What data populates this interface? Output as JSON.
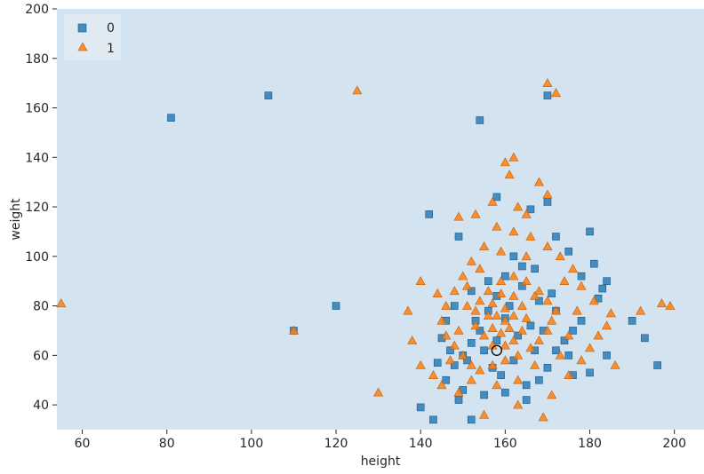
{
  "chart_data": {
    "type": "scatter",
    "xlabel": "height",
    "ylabel": "weight",
    "xlim": [
      54,
      207
    ],
    "ylim": [
      30,
      200
    ],
    "xticks": [
      60,
      80,
      100,
      120,
      140,
      160,
      180,
      200
    ],
    "yticks": [
      40,
      60,
      80,
      100,
      120,
      140,
      160,
      180,
      200
    ],
    "grid": false,
    "background": "#d3e3ef",
    "legend": {
      "placement": "top-left",
      "entries": [
        "0",
        "1"
      ]
    },
    "series": [
      {
        "name": "0",
        "marker": "square",
        "color": "#1f77b4",
        "points": [
          [
            81,
            156
          ],
          [
            104,
            165
          ],
          [
            110,
            70
          ],
          [
            120,
            80
          ],
          [
            154,
            155
          ],
          [
            170,
            165
          ],
          [
            142,
            117
          ],
          [
            140,
            39
          ],
          [
            143,
            34
          ],
          [
            152,
            34
          ],
          [
            158,
            124
          ],
          [
            170,
            122
          ],
          [
            180,
            110
          ],
          [
            172,
            108
          ],
          [
            149,
            108
          ],
          [
            166,
            119
          ],
          [
            162,
            100
          ],
          [
            164,
            96
          ],
          [
            184,
            90
          ],
          [
            183,
            87
          ],
          [
            182,
            83
          ],
          [
            190,
            74
          ],
          [
            193,
            67
          ],
          [
            196,
            56
          ],
          [
            184,
            60
          ],
          [
            180,
            53
          ],
          [
            176,
            52
          ],
          [
            175,
            60
          ],
          [
            172,
            78
          ],
          [
            168,
            82
          ],
          [
            166,
            72
          ],
          [
            163,
            68
          ],
          [
            160,
            75
          ],
          [
            158,
            84
          ],
          [
            156,
            78
          ],
          [
            154,
            70
          ],
          [
            152,
            65
          ],
          [
            150,
            60
          ],
          [
            148,
            56
          ],
          [
            146,
            50
          ],
          [
            150,
            46
          ],
          [
            155,
            44
          ],
          [
            160,
            45
          ],
          [
            165,
            48
          ],
          [
            168,
            50
          ],
          [
            170,
            55
          ],
          [
            172,
            62
          ],
          [
            174,
            66
          ],
          [
            176,
            70
          ],
          [
            178,
            74
          ],
          [
            164,
            88
          ],
          [
            160,
            92
          ],
          [
            156,
            90
          ],
          [
            152,
            86
          ],
          [
            148,
            80
          ],
          [
            146,
            74
          ],
          [
            145,
            67
          ],
          [
            147,
            62
          ],
          [
            151,
            58
          ],
          [
            157,
            55
          ],
          [
            162,
            58
          ],
          [
            167,
            62
          ],
          [
            169,
            70
          ],
          [
            171,
            85
          ],
          [
            167,
            95
          ],
          [
            161,
            80
          ],
          [
            158,
            66
          ],
          [
            155,
            62
          ],
          [
            153,
            74
          ],
          [
            159,
            52
          ],
          [
            165,
            42
          ],
          [
            149,
            42
          ],
          [
            144,
            57
          ],
          [
            178,
            92
          ],
          [
            181,
            97
          ],
          [
            175,
            102
          ]
        ]
      },
      {
        "name": "1",
        "marker": "triangle",
        "color": "#ff7f0e",
        "points": [
          [
            55,
            81
          ],
          [
            110,
            70
          ],
          [
            125,
            167
          ],
          [
            130,
            45
          ],
          [
            170,
            170
          ],
          [
            172,
            166
          ],
          [
            162,
            140
          ],
          [
            160,
            138
          ],
          [
            161,
            133
          ],
          [
            168,
            130
          ],
          [
            170,
            125
          ],
          [
            163,
            120
          ],
          [
            165,
            117
          ],
          [
            157,
            122
          ],
          [
            153,
            117
          ],
          [
            149,
            116
          ],
          [
            144,
            85
          ],
          [
            140,
            90
          ],
          [
            137,
            78
          ],
          [
            138,
            66
          ],
          [
            140,
            56
          ],
          [
            143,
            52
          ],
          [
            145,
            48
          ],
          [
            149,
            45
          ],
          [
            155,
            36
          ],
          [
            163,
            40
          ],
          [
            169,
            35
          ],
          [
            171,
            44
          ],
          [
            175,
            52
          ],
          [
            178,
            58
          ],
          [
            180,
            63
          ],
          [
            182,
            68
          ],
          [
            184,
            72
          ],
          [
            186,
            56
          ],
          [
            192,
            78
          ],
          [
            197,
            81
          ],
          [
            199,
            80
          ],
          [
            185,
            77
          ],
          [
            181,
            82
          ],
          [
            178,
            88
          ],
          [
            176,
            95
          ],
          [
            173,
            100
          ],
          [
            170,
            104
          ],
          [
            166,
            108
          ],
          [
            162,
            110
          ],
          [
            158,
            112
          ],
          [
            155,
            104
          ],
          [
            152,
            98
          ],
          [
            150,
            92
          ],
          [
            148,
            86
          ],
          [
            146,
            80
          ],
          [
            145,
            74
          ],
          [
            146,
            68
          ],
          [
            148,
            64
          ],
          [
            150,
            60
          ],
          [
            152,
            56
          ],
          [
            154,
            54
          ],
          [
            157,
            56
          ],
          [
            160,
            58
          ],
          [
            163,
            60
          ],
          [
            166,
            63
          ],
          [
            168,
            66
          ],
          [
            170,
            70
          ],
          [
            171,
            74
          ],
          [
            172,
            78
          ],
          [
            170,
            82
          ],
          [
            168,
            86
          ],
          [
            165,
            90
          ],
          [
            162,
            92
          ],
          [
            159,
            90
          ],
          [
            156,
            86
          ],
          [
            154,
            82
          ],
          [
            153,
            78
          ],
          [
            153,
            72
          ],
          [
            155,
            68
          ],
          [
            157,
            64
          ],
          [
            160,
            64
          ],
          [
            162,
            66
          ],
          [
            164,
            70
          ],
          [
            165,
            75
          ],
          [
            164,
            80
          ],
          [
            162,
            84
          ],
          [
            159,
            85
          ],
          [
            157,
            81
          ],
          [
            156,
            76
          ],
          [
            157,
            71
          ],
          [
            159,
            69
          ],
          [
            161,
            71
          ],
          [
            162,
            76
          ],
          [
            160,
            79
          ],
          [
            158,
            76
          ],
          [
            160,
            74
          ],
          [
            151,
            88
          ],
          [
            149,
            70
          ],
          [
            147,
            58
          ],
          [
            167,
            56
          ],
          [
            173,
            60
          ],
          [
            174,
            90
          ],
          [
            165,
            100
          ],
          [
            159,
            102
          ],
          [
            154,
            95
          ],
          [
            151,
            80
          ],
          [
            163,
            50
          ],
          [
            158,
            48
          ],
          [
            152,
            50
          ],
          [
            175,
            68
          ],
          [
            177,
            78
          ],
          [
            167,
            84
          ]
        ]
      }
    ],
    "annotations": [
      {
        "type": "circle-marker",
        "x": 158,
        "y": 62
      }
    ]
  }
}
